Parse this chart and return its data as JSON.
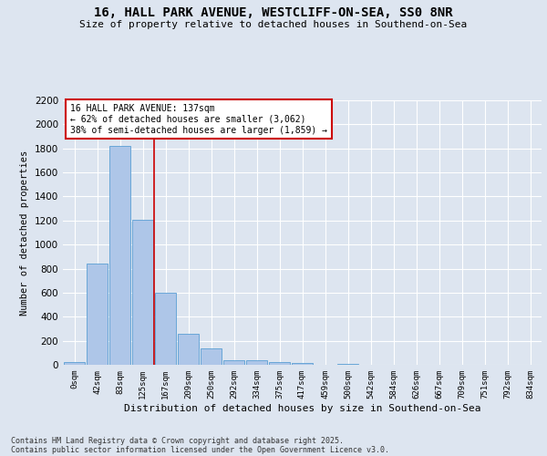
{
  "title_line1": "16, HALL PARK AVENUE, WESTCLIFF-ON-SEA, SS0 8NR",
  "title_line2": "Size of property relative to detached houses in Southend-on-Sea",
  "xlabel": "Distribution of detached houses by size in Southend-on-Sea",
  "ylabel": "Number of detached properties",
  "footer_line1": "Contains HM Land Registry data © Crown copyright and database right 2025.",
  "footer_line2": "Contains public sector information licensed under the Open Government Licence v3.0.",
  "bar_labels": [
    "0sqm",
    "42sqm",
    "83sqm",
    "125sqm",
    "167sqm",
    "209sqm",
    "250sqm",
    "292sqm",
    "334sqm",
    "375sqm",
    "417sqm",
    "459sqm",
    "500sqm",
    "542sqm",
    "584sqm",
    "626sqm",
    "667sqm",
    "709sqm",
    "751sqm",
    "792sqm",
    "834sqm"
  ],
  "bar_values": [
    20,
    845,
    1820,
    1210,
    600,
    255,
    135,
    40,
    35,
    25,
    15,
    0,
    10,
    0,
    0,
    0,
    0,
    0,
    0,
    0,
    0
  ],
  "bar_color": "#aec6e8",
  "bar_edgecolor": "#5a9fd4",
  "ylim": [
    0,
    2200
  ],
  "yticks": [
    0,
    200,
    400,
    600,
    800,
    1000,
    1200,
    1400,
    1600,
    1800,
    2000,
    2200
  ],
  "property_line_x": 3.5,
  "annotation_text": "16 HALL PARK AVENUE: 137sqm\n← 62% of detached houses are smaller (3,062)\n38% of semi-detached houses are larger (1,859) →",
  "annotation_box_color": "#ffffff",
  "annotation_box_edgecolor": "#cc0000",
  "vline_color": "#cc0000",
  "bg_color": "#dde5f0",
  "plot_bg_color": "#dde5f0",
  "grid_color": "#ffffff"
}
